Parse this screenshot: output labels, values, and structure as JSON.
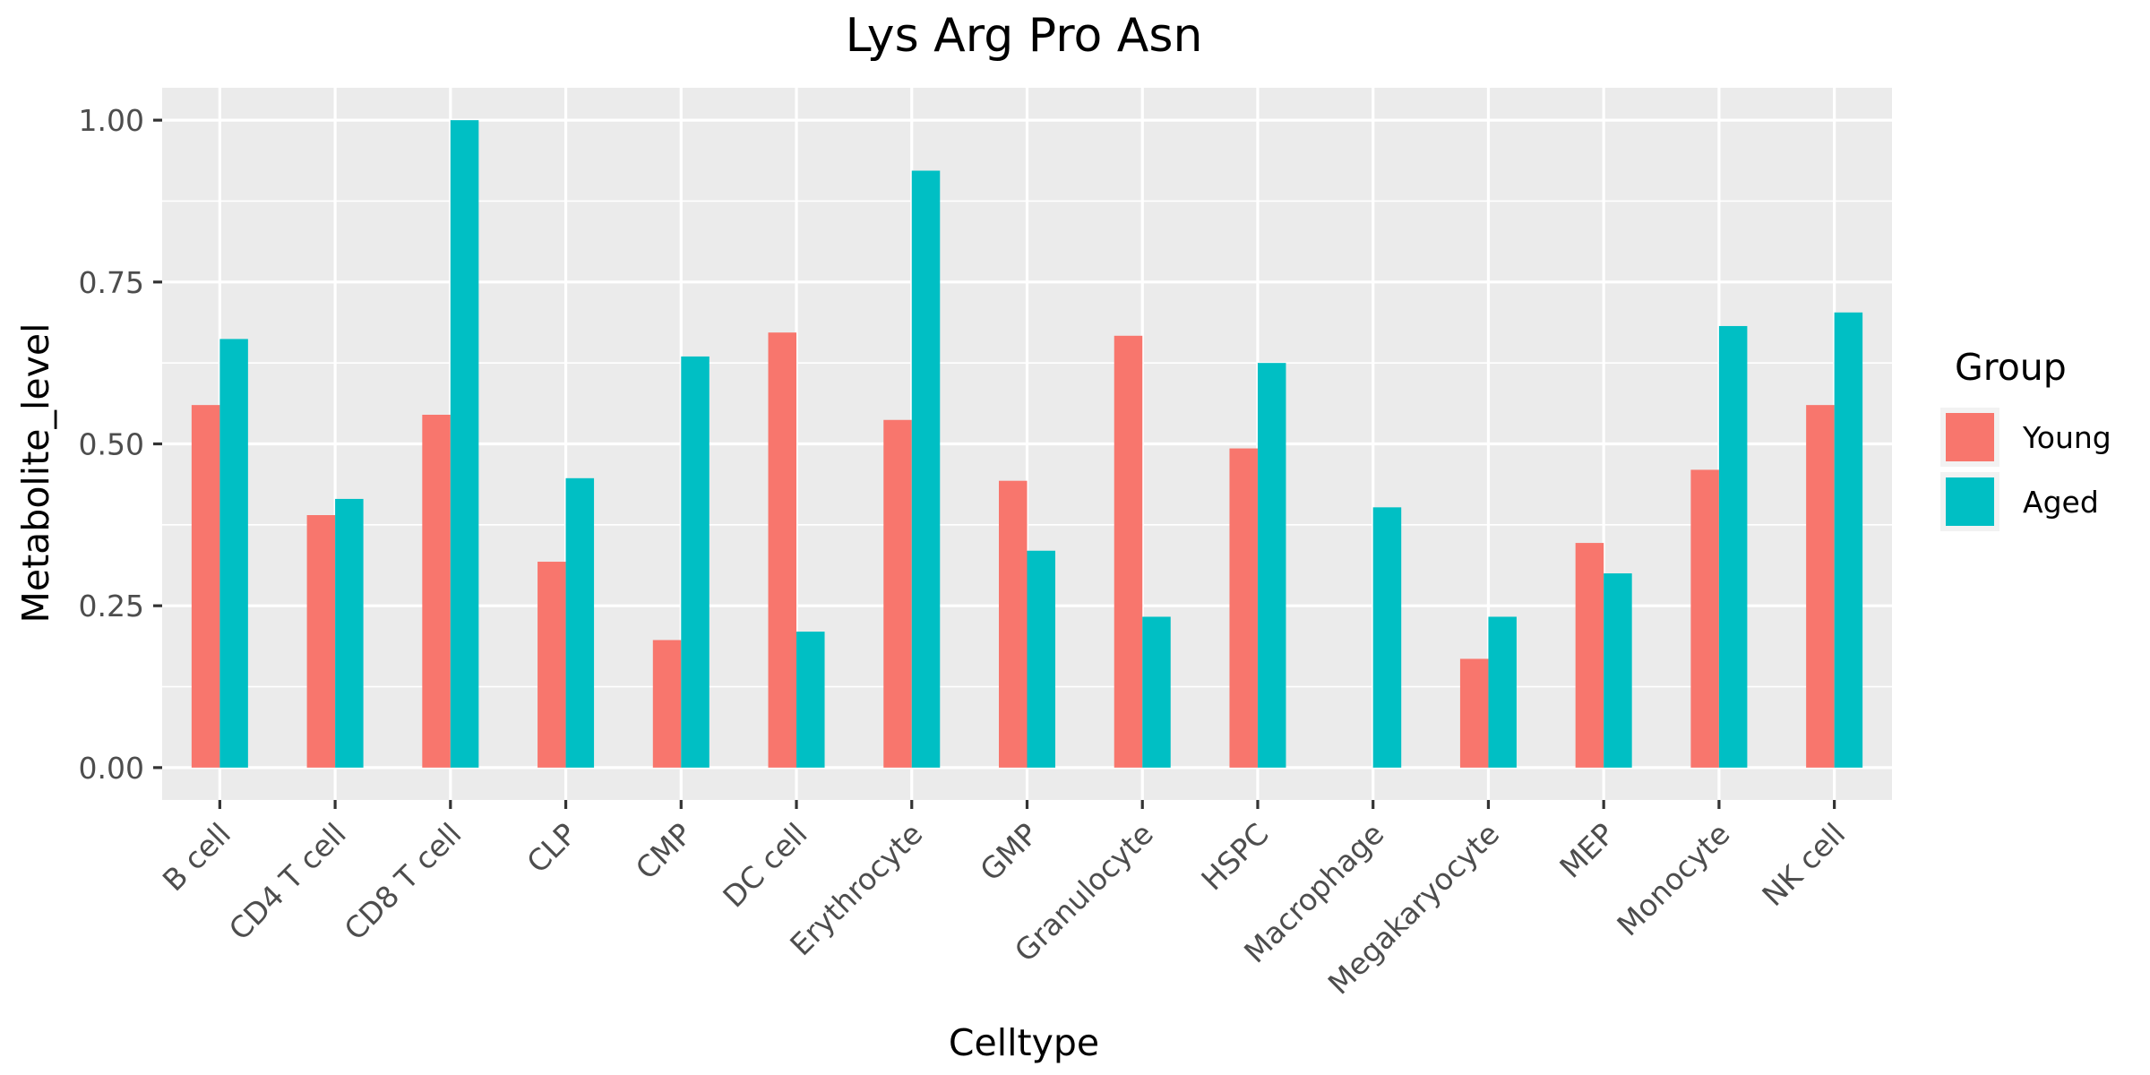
{
  "chart_data": {
    "type": "bar",
    "title": "Lys Arg Pro Asn",
    "xlabel": "Celltype",
    "ylabel": "Metabolite_level",
    "ylim": [
      -0.05,
      1.05
    ],
    "yticks": [
      0.0,
      0.25,
      0.5,
      0.75,
      1.0
    ],
    "ytick_labels": [
      "0.00",
      "0.25",
      "0.50",
      "0.75",
      "1.00"
    ],
    "grid": true,
    "legend": {
      "title": "Group",
      "placement": "right"
    },
    "categories": [
      "B cell",
      "CD4 T cell",
      "CD8 T cell",
      "CLP",
      "CMP",
      "DC cell",
      "Erythrocyte",
      "GMP",
      "Granulocyte",
      "HSPC",
      "Macrophage",
      "Megakaryocyte",
      "MEP",
      "Monocyte",
      "NK cell"
    ],
    "series": [
      {
        "name": "Young",
        "color": "#F8766D",
        "values": [
          0.56,
          0.39,
          0.545,
          0.318,
          0.197,
          0.672,
          0.537,
          0.443,
          0.667,
          0.493,
          null,
          0.168,
          0.347,
          0.46,
          0.56
        ]
      },
      {
        "name": "Aged",
        "color": "#00BFC4",
        "values": [
          0.662,
          0.415,
          1.0,
          0.447,
          0.635,
          0.21,
          0.922,
          0.335,
          0.233,
          0.625,
          0.402,
          0.233,
          0.3,
          0.682,
          0.703
        ]
      }
    ],
    "colors": {
      "panel_background": "#EBEBEB",
      "grid_line": "#FFFFFF",
      "axis_text": "#4D4D4D",
      "axis_ticks": "#333333",
      "title_text": "#000000"
    }
  }
}
